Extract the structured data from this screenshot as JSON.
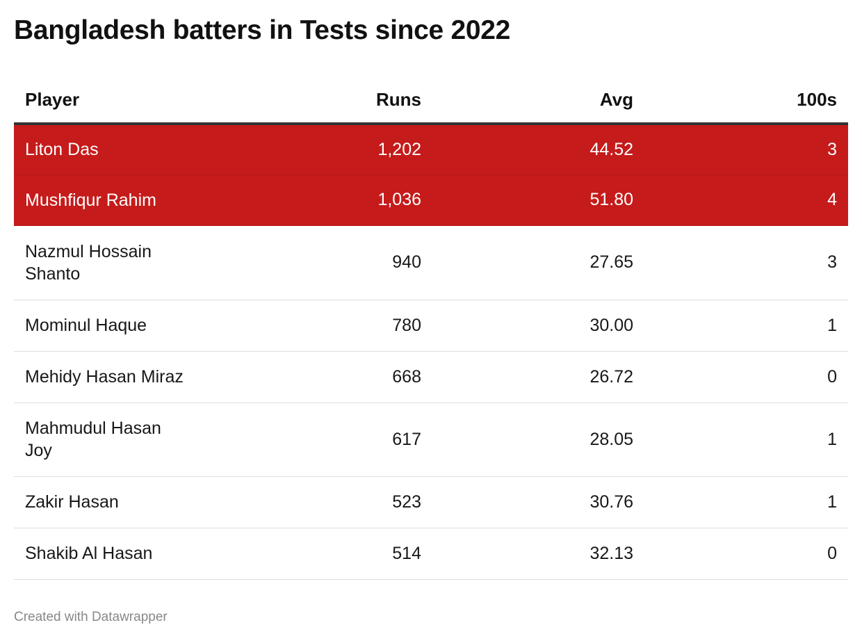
{
  "title": "Bangladesh batters in Tests since 2022",
  "footer": "Created with Datawrapper",
  "colors": {
    "highlight": "#c61b1b"
  },
  "chart_data": {
    "type": "table",
    "title": "Bangladesh batters in Tests since 2022",
    "columns": [
      "Player",
      "Runs",
      "Avg",
      "100s"
    ],
    "rows": [
      {
        "player": "Liton Das",
        "runs": "1,202",
        "avg": "44.52",
        "hundreds": "3",
        "highlighted": true
      },
      {
        "player": "Mushfiqur Rahim",
        "runs": "1,036",
        "avg": "51.80",
        "hundreds": "4",
        "highlighted": true
      },
      {
        "player": "Nazmul Hossain Shanto",
        "runs": "940",
        "avg": "27.65",
        "hundreds": "3",
        "highlighted": false
      },
      {
        "player": "Mominul Haque",
        "runs": "780",
        "avg": "30.00",
        "hundreds": "1",
        "highlighted": false
      },
      {
        "player": "Mehidy Hasan Miraz",
        "runs": "668",
        "avg": "26.72",
        "hundreds": "0",
        "highlighted": false
      },
      {
        "player": "Mahmudul Hasan Joy",
        "runs": "617",
        "avg": "28.05",
        "hundreds": "1",
        "highlighted": false
      },
      {
        "player": "Zakir Hasan",
        "runs": "523",
        "avg": "30.76",
        "hundreds": "1",
        "highlighted": false
      },
      {
        "player": "Shakib Al Hasan",
        "runs": "514",
        "avg": "32.13",
        "hundreds": "0",
        "highlighted": false
      }
    ]
  }
}
